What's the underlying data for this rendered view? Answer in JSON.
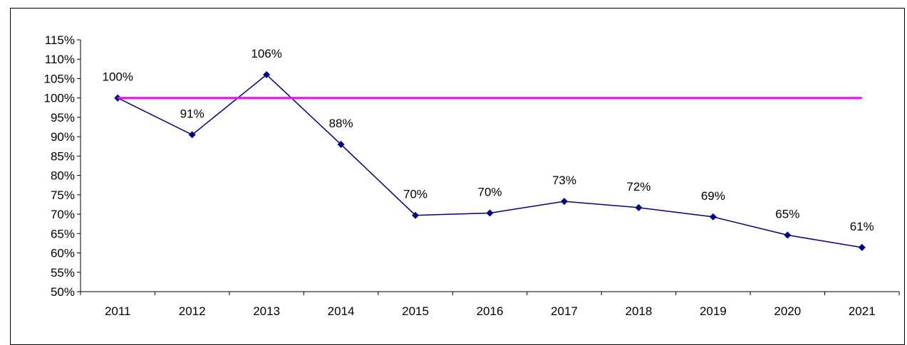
{
  "chart_data": {
    "type": "line",
    "title": "",
    "xlabel": "",
    "ylabel": "",
    "categories": [
      "2011",
      "2012",
      "2013",
      "2014",
      "2015",
      "2016",
      "2017",
      "2018",
      "2019",
      "2020",
      "2021"
    ],
    "series": [
      {
        "values": [
          100,
          90.5,
          106,
          88,
          69.7,
          70.3,
          73.3,
          71.7,
          69.3,
          64.6,
          61.4
        ],
        "labels": [
          "100%",
          "91%",
          "106%",
          "88%",
          "70%",
          "70%",
          "73%",
          "72%",
          "69%",
          "65%",
          "61%"
        ],
        "color": "#000080",
        "marker": "diamond"
      },
      {
        "values": [
          100,
          100,
          100,
          100,
          100,
          100,
          100,
          100,
          100,
          100,
          100
        ],
        "color": "#FF00FF",
        "marker": "none"
      }
    ],
    "ylim": [
      50,
      115
    ],
    "ytick_step": 5,
    "ytick_suffix": "%",
    "grid": false,
    "legend": "none"
  }
}
